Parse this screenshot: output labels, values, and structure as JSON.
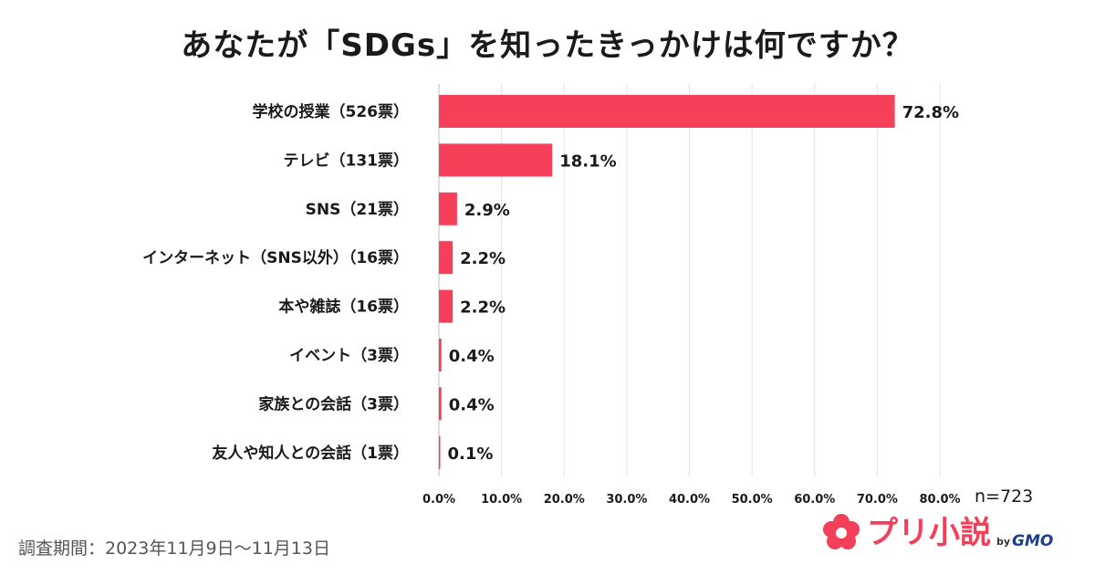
{
  "chart_data": {
    "type": "bar",
    "orientation": "horizontal",
    "title": "あなたが「SDGs」を知ったきっかけは何ですか？",
    "categories": [
      "学校の授業（526票）",
      "テレビ（131票）",
      "SNS（21票）",
      "インターネット（SNS以外）（16票）",
      "本や雑誌（16票）",
      "イベント（3票）",
      "家族との会話（3票）",
      "友人や知人との会話（1票）"
    ],
    "values": [
      72.8,
      18.1,
      2.9,
      2.2,
      2.2,
      0.4,
      0.4,
      0.1
    ],
    "value_labels": [
      "72.8%",
      "18.1%",
      "2.9%",
      "2.2%",
      "2.2%",
      "0.4%",
      "0.4%",
      "0.1%"
    ],
    "xlim": [
      0,
      80
    ],
    "x_ticks": [
      "0.0%",
      "10.0%",
      "20.0%",
      "30.0%",
      "40.0%",
      "50.0%",
      "60.0%",
      "70.0%",
      "80.0%"
    ],
    "grid": true,
    "bar_color": "#f6405a",
    "sample_size": "n=723"
  },
  "footer": {
    "survey_period": "調査期間：2023年11月9日〜11月13日",
    "brand_name": "プリ小説",
    "brand_by": "by",
    "brand_company": "GMO"
  }
}
